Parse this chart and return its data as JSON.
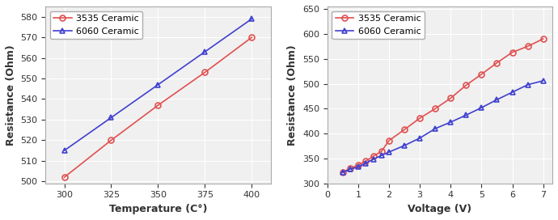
{
  "left": {
    "xlabel": "Temperature (C°)",
    "ylabel": "Resistance (Ohm)",
    "xlim": [
      290,
      410
    ],
    "ylim": [
      499,
      585
    ],
    "yticks": [
      500,
      510,
      520,
      530,
      540,
      550,
      560,
      570,
      580
    ],
    "xticks": [
      300,
      325,
      350,
      375,
      400
    ],
    "series": [
      {
        "label": "3535 Ceramic",
        "x": [
          300,
          325,
          350,
          375,
          400
        ],
        "y": [
          502,
          520,
          537,
          553,
          570
        ],
        "color": "#e05050",
        "marker": "o"
      },
      {
        "label": "6060 Ceramic",
        "x": [
          300,
          325,
          350,
          375,
          400
        ],
        "y": [
          515,
          531,
          547,
          563,
          579
        ],
        "color": "#4040d0",
        "marker": "^"
      }
    ]
  },
  "right": {
    "xlabel": "Voltage (V)",
    "ylabel": "Resistance (Ohm)",
    "xlim": [
      0,
      7.3
    ],
    "ylim": [
      300,
      655
    ],
    "yticks": [
      300,
      350,
      400,
      450,
      500,
      550,
      600,
      650
    ],
    "xticks": [
      0,
      1,
      2,
      3,
      4,
      5,
      6,
      7
    ],
    "series": [
      {
        "label": "3535 Ceramic",
        "x": [
          0.5,
          0.75,
          1.0,
          1.25,
          1.5,
          1.75,
          2.0,
          2.5,
          3.0,
          3.5,
          4.0,
          4.5,
          5.0,
          5.5,
          6.0,
          6.5,
          7.0
        ],
        "y": [
          323,
          330,
          337,
          345,
          355,
          364,
          386,
          408,
          431,
          450,
          471,
          497,
          519,
          542,
          563,
          575,
          590
        ],
        "color": "#e05050",
        "marker": "o"
      },
      {
        "label": "6060 Ceramic",
        "x": [
          0.5,
          0.75,
          1.0,
          1.25,
          1.5,
          1.75,
          2.0,
          2.5,
          3.0,
          3.5,
          4.0,
          4.5,
          5.0,
          5.5,
          6.0,
          6.5,
          7.0
        ],
        "y": [
          322,
          329,
          333,
          341,
          349,
          356,
          363,
          376,
          391,
          410,
          423,
          437,
          452,
          468,
          483,
          498,
          506
        ],
        "color": "#4040d0",
        "marker": "^"
      }
    ]
  },
  "bg_color": "#f0f0f0"
}
